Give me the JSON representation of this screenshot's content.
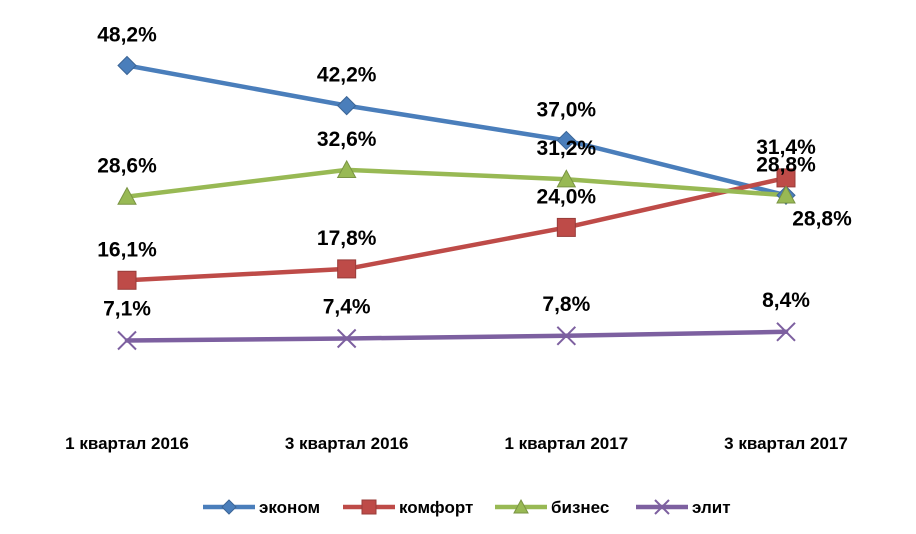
{
  "chart_data": {
    "type": "line",
    "title": "",
    "xlabel": "",
    "ylabel": "",
    "categories": [
      "1 квартал 2016",
      "3 квартал 2016",
      "1 квартал 2017",
      "3 квартал 2017"
    ],
    "value_labels_format": "percent with comma decimal",
    "ylim": [
      0,
      55
    ],
    "grid": false,
    "legend_position": "bottom",
    "series": [
      {
        "name": "эконом",
        "values": [
          48.2,
          42.2,
          37.0,
          28.8
        ],
        "labels": [
          "48,2%",
          "42,2%",
          "37,0%",
          "28,8%"
        ],
        "color": "#4a7ebb",
        "marker": "diamond"
      },
      {
        "name": "комфорт",
        "values": [
          16.1,
          17.8,
          24.0,
          31.4
        ],
        "labels": [
          "16,1%",
          "17,8%",
          "24,0%",
          "31,4%"
        ],
        "color": "#be4b48",
        "marker": "square"
      },
      {
        "name": "бизнес",
        "values": [
          28.6,
          32.6,
          31.2,
          28.8
        ],
        "labels": [
          "28,6%",
          "32,6%",
          "31,2%",
          "28,8%"
        ],
        "color": "#98b954",
        "marker": "triangle"
      },
      {
        "name": "элит",
        "values": [
          7.1,
          7.4,
          7.8,
          8.4
        ],
        "labels": [
          "7,1%",
          "7,4%",
          "7,8%",
          "8,4%"
        ],
        "color": "#7d60a0",
        "marker": "x"
      }
    ]
  }
}
